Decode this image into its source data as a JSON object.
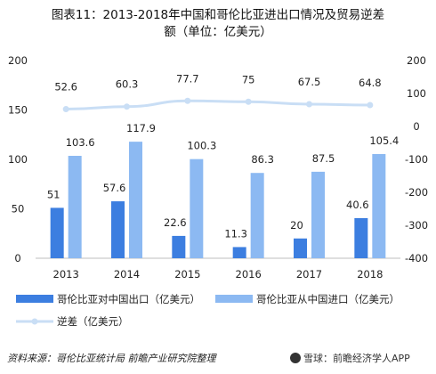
{
  "title_line1": "图表11：2013-2018年中国和哥伦比亚进出口情况及贸易逆差",
  "title_line2": "额（单位：亿美元）",
  "source": "资料来源：哥伦比亚统计局 前瞻产业研究院整理",
  "watermark": "雪球：前瞻经济学人APP",
  "chart_data": {
    "type": "bar",
    "categories": [
      "2013",
      "2014",
      "2015",
      "2016",
      "2017",
      "2018"
    ],
    "series": [
      {
        "name": "哥伦比亚对中国出口（亿美元）",
        "type": "bar",
        "axis": "left",
        "color": "#3c7ee0",
        "values": [
          51,
          57.6,
          22.6,
          11.3,
          20,
          40.6
        ]
      },
      {
        "name": "哥伦比亚从中国进口（亿美元）",
        "type": "bar",
        "axis": "left",
        "color": "#8cb9f2",
        "values": [
          103.6,
          117.9,
          100.3,
          86.3,
          87.5,
          105.4
        ]
      },
      {
        "name": "逆差（亿美元）",
        "type": "line",
        "axis": "right",
        "color": "#c9def5",
        "values": [
          52.6,
          60.3,
          77.7,
          75,
          67.5,
          64.8
        ]
      }
    ],
    "left_axis": {
      "min": 0,
      "max": 200,
      "ticks": [
        0,
        50,
        100,
        150,
        200
      ]
    },
    "right_axis": {
      "min": -400,
      "max": 200,
      "ticks": [
        -400,
        -300,
        -200,
        -100,
        0,
        100,
        200
      ]
    },
    "grid": false,
    "legend_position": "bottom"
  }
}
